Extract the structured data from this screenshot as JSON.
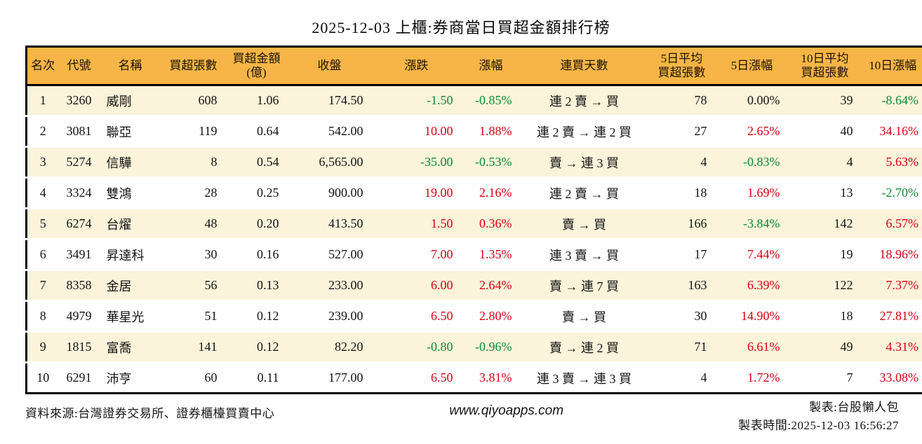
{
  "title": "2025-12-03 上櫃:券商當日買超金額排行榜",
  "colors": {
    "header_bg": "#F6B546",
    "row_alt_bg": "#FBF3DA",
    "up_red": "#D90012",
    "down_green": "#0E8A32",
    "border": "#000000",
    "gap_line": "#FFFFFF"
  },
  "table": {
    "headers": [
      "名次",
      "代號",
      "名稱",
      "買超張數",
      "買超金額\n(億)",
      "收盤",
      "漲跌",
      "漲幅",
      "連買天數",
      "5日平均\n買超張數",
      "5日漲幅",
      "10日平均\n買超張數",
      "10日漲幅"
    ],
    "rows": [
      {
        "cells": [
          "1",
          "3260",
          "威剛",
          "608",
          "1.06",
          "174.50",
          "-1.50",
          "-0.85%",
          "連 2 賣 → 買",
          "78",
          "0.00%",
          "39",
          "-8.64%"
        ],
        "cls": [
          "",
          "",
          "",
          "",
          "",
          "",
          "dn",
          "dn",
          "",
          "",
          "",
          "",
          "dn"
        ]
      },
      {
        "cells": [
          "2",
          "3081",
          "聯亞",
          "119",
          "0.64",
          "542.00",
          "10.00",
          "1.88%",
          "連 2 賣 → 連 2 買",
          "27",
          "2.65%",
          "40",
          "34.16%"
        ],
        "cls": [
          "",
          "",
          "",
          "",
          "",
          "",
          "up",
          "up",
          "",
          "",
          "up",
          "",
          "up"
        ]
      },
      {
        "cells": [
          "3",
          "5274",
          "信驊",
          "8",
          "0.54",
          "6,565.00",
          "-35.00",
          "-0.53%",
          "賣 → 連 3 買",
          "4",
          "-0.83%",
          "4",
          "5.63%"
        ],
        "cls": [
          "",
          "",
          "",
          "",
          "",
          "",
          "dn",
          "dn",
          "",
          "",
          "dn",
          "",
          "up"
        ]
      },
      {
        "cells": [
          "4",
          "3324",
          "雙鴻",
          "28",
          "0.25",
          "900.00",
          "19.00",
          "2.16%",
          "連 2 賣 → 買",
          "18",
          "1.69%",
          "13",
          "-2.70%"
        ],
        "cls": [
          "",
          "",
          "",
          "",
          "",
          "",
          "up",
          "up",
          "",
          "",
          "up",
          "",
          "dn"
        ]
      },
      {
        "cells": [
          "5",
          "6274",
          "台燿",
          "48",
          "0.20",
          "413.50",
          "1.50",
          "0.36%",
          "賣 → 買",
          "166",
          "-3.84%",
          "142",
          "6.57%"
        ],
        "cls": [
          "",
          "",
          "",
          "",
          "",
          "",
          "up",
          "up",
          "",
          "",
          "dn",
          "",
          "up"
        ]
      },
      {
        "cells": [
          "6",
          "3491",
          "昇達科",
          "30",
          "0.16",
          "527.00",
          "7.00",
          "1.35%",
          "連 3 賣 → 買",
          "17",
          "7.44%",
          "19",
          "18.96%"
        ],
        "cls": [
          "",
          "",
          "",
          "",
          "",
          "",
          "up",
          "up",
          "",
          "",
          "up",
          "",
          "up"
        ]
      },
      {
        "cells": [
          "7",
          "8358",
          "金居",
          "56",
          "0.13",
          "233.00",
          "6.00",
          "2.64%",
          "賣 → 連 7 買",
          "163",
          "6.39%",
          "122",
          "7.37%"
        ],
        "cls": [
          "",
          "",
          "",
          "",
          "",
          "",
          "up",
          "up",
          "",
          "",
          "up",
          "",
          "up"
        ]
      },
      {
        "cells": [
          "8",
          "4979",
          "華星光",
          "51",
          "0.12",
          "239.00",
          "6.50",
          "2.80%",
          "賣 → 買",
          "30",
          "14.90%",
          "18",
          "27.81%"
        ],
        "cls": [
          "",
          "",
          "",
          "",
          "",
          "",
          "up",
          "up",
          "",
          "",
          "up",
          "",
          "up"
        ]
      },
      {
        "cells": [
          "9",
          "1815",
          "富喬",
          "141",
          "0.12",
          "82.20",
          "-0.80",
          "-0.96%",
          "賣 → 連 2 買",
          "71",
          "6.61%",
          "49",
          "4.31%"
        ],
        "cls": [
          "",
          "",
          "",
          "",
          "",
          "",
          "dn",
          "dn",
          "",
          "",
          "up",
          "",
          "up"
        ]
      },
      {
        "cells": [
          "10",
          "6291",
          "沛亨",
          "60",
          "0.11",
          "177.00",
          "6.50",
          "3.81%",
          "連 3 賣 → 連 3 買",
          "4",
          "1.72%",
          "7",
          "33.08%"
        ],
        "cls": [
          "",
          "",
          "",
          "",
          "",
          "",
          "up",
          "up",
          "",
          "",
          "up",
          "",
          "up"
        ]
      }
    ]
  },
  "footer": {
    "source": "資料來源:台灣證券交易所、證券櫃檯買賣中心",
    "website": "www.qiyoapps.com",
    "author": "製表:台股懶人包",
    "generated": "製表時間:2025-12-03 16:56:27"
  }
}
